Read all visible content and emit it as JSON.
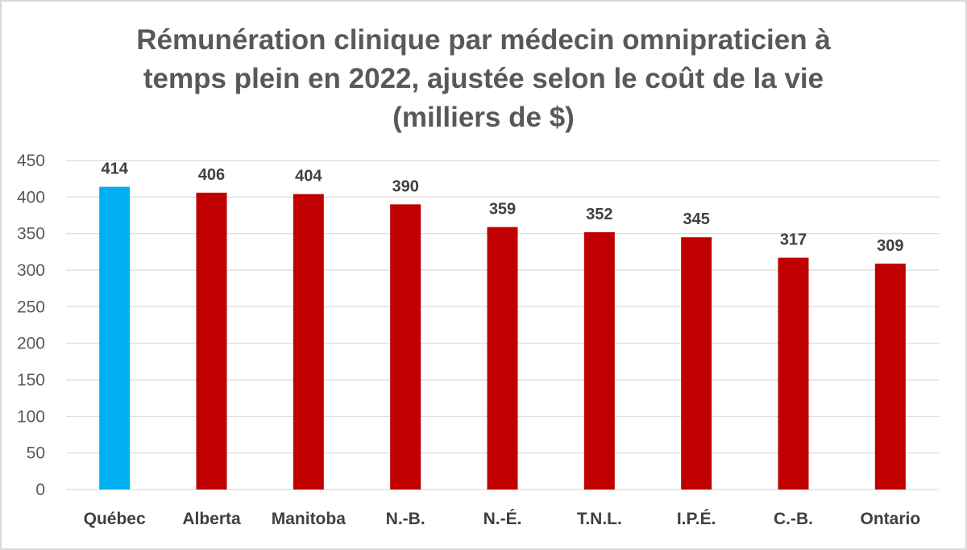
{
  "chart_data": {
    "type": "bar",
    "title_lines": [
      "Rémunération clinique par médecin omnipraticien à",
      "temps plein en 2022, ajustée selon le coût de la vie",
      "(milliers de $)"
    ],
    "categories": [
      "Québec",
      "Alberta",
      "Manitoba",
      "N.-B.",
      "N.-É.",
      "T.N.L.",
      "I.P.É.",
      "C.-B.",
      "Ontario"
    ],
    "values": [
      414,
      406,
      404,
      390,
      359,
      352,
      345,
      317,
      309
    ],
    "ylim": [
      0,
      450
    ],
    "yticks": [
      0,
      50,
      100,
      150,
      200,
      250,
      300,
      350,
      400,
      450
    ],
    "grid": true,
    "data_labels": true,
    "colors": {
      "highlight": "#00b0f0",
      "default": "#c00000",
      "gridline": "#d9d9d9"
    },
    "highlight_index": 0
  }
}
